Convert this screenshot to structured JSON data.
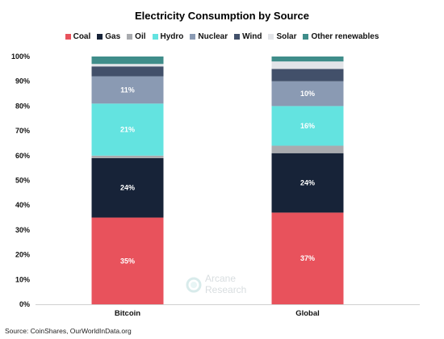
{
  "chart_data": {
    "type": "bar",
    "stacked": true,
    "title": "Electricity Consumption by Source",
    "categories": [
      "Bitcoin",
      "Global"
    ],
    "ylim": [
      0,
      100
    ],
    "y_ticks": [
      "0%",
      "10%",
      "20%",
      "30%",
      "40%",
      "50%",
      "60%",
      "70%",
      "80%",
      "90%",
      "100%"
    ],
    "legend_position": "top",
    "series": [
      {
        "name": "Coal",
        "color": "#e8525c",
        "values": [
          35,
          37
        ],
        "labels": [
          "35%",
          "37%"
        ],
        "label_color": "#ffffff"
      },
      {
        "name": "Gas",
        "color": "#172338",
        "values": [
          24,
          24
        ],
        "labels": [
          "24%",
          "24%"
        ],
        "label_color": "#ffffff"
      },
      {
        "name": "Oil",
        "color": "#a9abaf",
        "values": [
          1,
          3
        ],
        "labels": [
          "",
          ""
        ],
        "label_color": "#ffffff"
      },
      {
        "name": "Hydro",
        "color": "#63e3e0",
        "values": [
          21,
          16
        ],
        "labels": [
          "21%",
          "16%"
        ],
        "label_color": "#ffffff"
      },
      {
        "name": "Nuclear",
        "color": "#8a9ab3",
        "values": [
          11,
          10
        ],
        "labels": [
          "11%",
          "10%"
        ],
        "label_color": "#ffffff"
      },
      {
        "name": "Wind",
        "color": "#42506a",
        "values": [
          4,
          5
        ],
        "labels": [
          "",
          ""
        ],
        "label_color": "#ffffff"
      },
      {
        "name": "Solar",
        "color": "#e2e4e8",
        "values": [
          1,
          3
        ],
        "labels": [
          "",
          ""
        ],
        "label_color": "#333333"
      },
      {
        "name": "Other renewables",
        "color": "#3f8d8a",
        "values": [
          3,
          2
        ],
        "labels": [
          "",
          ""
        ],
        "label_color": "#ffffff"
      }
    ]
  },
  "source_note": "Source: CoinShares, OurWorldInData.org",
  "watermark": {
    "line1": "Arcane",
    "line2": "Research"
  }
}
